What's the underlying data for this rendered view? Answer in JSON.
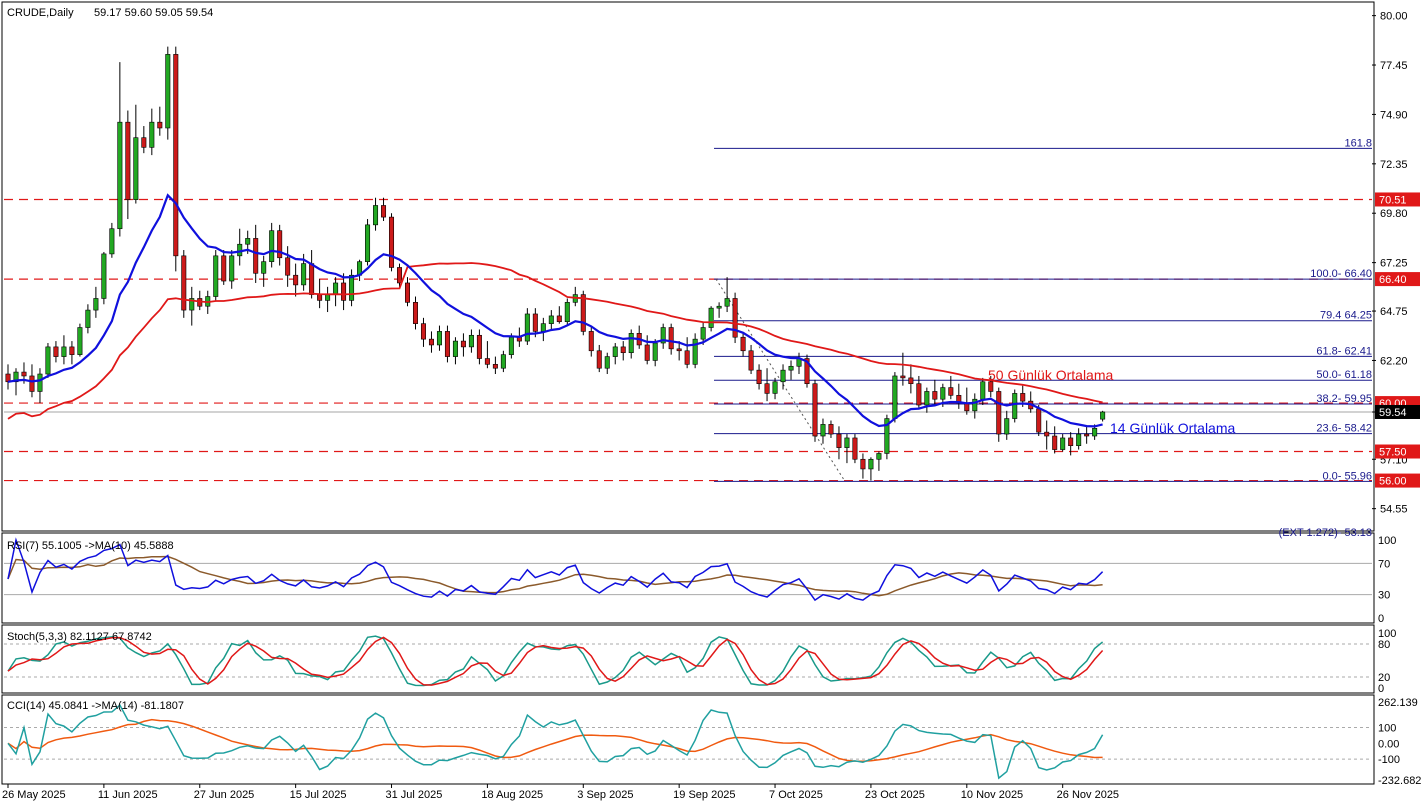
{
  "header": {
    "symbol": "CRUDE,Daily",
    "ohlc": "59.17 59.60 59.05 59.54"
  },
  "colors": {
    "up": "#22a822",
    "down": "#cc1a1a",
    "ma14": "#1010dd",
    "ma50": "#e01818",
    "level": "#e01818",
    "fib": "#1a1a8c",
    "rsi": "#1010dd",
    "rsi_ma": "#8b5a2b",
    "stoch_k": "#1a9a8a",
    "stoch_d": "#e01818",
    "cci": "#20a0a0",
    "cci_ma": "#f05a10"
  },
  "annotations": {
    "ma50_label": "50 Günlük Ortalama",
    "ma14_label": "14 Günlük Ortalama"
  },
  "levels": [
    {
      "value": 70.51,
      "label": "70.51"
    },
    {
      "value": 66.4,
      "label": "66.40"
    },
    {
      "value": 60.0,
      "label": "60.00"
    },
    {
      "value": 57.5,
      "label": "57.50"
    },
    {
      "value": 56.0,
      "label": "56.00"
    }
  ],
  "current_price": {
    "value": 59.54,
    "label": "59.54"
  },
  "fibonacci": [
    {
      "value": 73.15,
      "label": "161.8"
    },
    {
      "value": 66.4,
      "label": "100.0- 66.40"
    },
    {
      "value": 64.25,
      "label": "79.4 64.25"
    },
    {
      "value": 62.41,
      "label": "61.8- 62.41"
    },
    {
      "value": 61.18,
      "label": "50.0- 61.18"
    },
    {
      "value": 59.95,
      "label": "38.2- 59.95"
    },
    {
      "value": 58.42,
      "label": "23.6- 58.42"
    },
    {
      "value": 55.96,
      "label": "0.0- 55.96"
    }
  ],
  "fib_ext_label": "(EXT 1.272)- 53.13",
  "indicators": {
    "rsi": {
      "label": "RSI(7) 55.1005   ->MA(10) 45.5888",
      "ticks": [
        "100",
        "70",
        "30",
        "0"
      ]
    },
    "stoch": {
      "label": "Stoch(5,3,3) 82.1127 67.8742",
      "ticks": [
        "100",
        "80",
        "20",
        "0"
      ]
    },
    "cci": {
      "label": "CCI(14) 45.0841   ->MA(14) -81.1807",
      "ticks": [
        "262.139",
        "100",
        "0.00",
        "-100",
        "-232.682"
      ]
    }
  },
  "chart_data": {
    "type": "candlestick",
    "y_ticks": [
      "80.00",
      "77.45",
      "74.90",
      "72.35",
      "69.80",
      "67.25",
      "64.75",
      "62.20",
      "59.54",
      "57.10",
      "54.55"
    ],
    "ylim": [
      53.5,
      80.6
    ],
    "x_labels": [
      "26 May 2025",
      "11 Jun 2025",
      "27 Jun 2025",
      "15 Jul 2025",
      "31 Jul 2025",
      "18 Aug 2025",
      "3 Sep 2025",
      "19 Sep 2025",
      "7 Oct 2025",
      "23 Oct 2025",
      "10 Nov 2025",
      "26 Nov 2025"
    ],
    "x_label_bars": [
      0,
      12,
      24,
      36,
      48,
      60,
      72,
      84,
      96,
      108,
      120,
      132
    ],
    "bars": [
      [
        61.5,
        62.0,
        60.7,
        61.1
      ],
      [
        61.1,
        61.8,
        60.4,
        61.6
      ],
      [
        61.6,
        62.1,
        61.0,
        61.4
      ],
      [
        61.4,
        62.0,
        60.3,
        60.6
      ],
      [
        60.6,
        61.8,
        60.0,
        61.5
      ],
      [
        61.5,
        63.1,
        61.3,
        62.9
      ],
      [
        62.9,
        63.2,
        62.1,
        62.4
      ],
      [
        62.4,
        63.5,
        62.0,
        62.9
      ],
      [
        62.9,
        63.2,
        62.0,
        62.5
      ],
      [
        62.5,
        64.1,
        62.4,
        63.9
      ],
      [
        63.9,
        65.1,
        63.6,
        64.8
      ],
      [
        64.8,
        66.0,
        64.4,
        65.4
      ],
      [
        65.4,
        67.8,
        65.1,
        67.7
      ],
      [
        67.7,
        69.3,
        67.5,
        69.0
      ],
      [
        69.0,
        77.6,
        68.6,
        74.5
      ],
      [
        74.5,
        75.1,
        69.5,
        70.5
      ],
      [
        70.5,
        75.4,
        70.3,
        73.7
      ],
      [
        73.7,
        74.3,
        72.9,
        73.2
      ],
      [
        73.2,
        75.2,
        72.8,
        74.5
      ],
      [
        74.5,
        75.3,
        73.8,
        74.2
      ],
      [
        74.2,
        78.4,
        73.6,
        78.0
      ],
      [
        78.0,
        78.4,
        66.8,
        67.6
      ],
      [
        67.6,
        67.9,
        64.4,
        64.8
      ],
      [
        64.8,
        66.0,
        64.0,
        65.4
      ],
      [
        65.4,
        65.8,
        64.8,
        65.0
      ],
      [
        65.0,
        65.8,
        64.6,
        65.5
      ],
      [
        65.5,
        67.9,
        65.3,
        67.6
      ],
      [
        67.6,
        67.9,
        66.1,
        66.3
      ],
      [
        66.3,
        67.9,
        65.9,
        67.6
      ],
      [
        67.6,
        69.0,
        67.1,
        68.2
      ],
      [
        68.2,
        68.9,
        67.7,
        68.5
      ],
      [
        68.5,
        69.2,
        66.2,
        66.7
      ],
      [
        66.7,
        67.6,
        66.0,
        67.3
      ],
      [
        67.3,
        69.3,
        67.0,
        68.9
      ],
      [
        68.9,
        69.2,
        67.1,
        67.5
      ],
      [
        67.5,
        68.1,
        66.0,
        66.6
      ],
      [
        66.6,
        67.2,
        65.5,
        66.1
      ],
      [
        66.1,
        67.7,
        65.8,
        67.2
      ],
      [
        67.2,
        67.9,
        65.4,
        65.6
      ],
      [
        65.6,
        66.4,
        64.9,
        65.3
      ],
      [
        65.3,
        66.0,
        64.7,
        65.6
      ],
      [
        65.6,
        66.5,
        65.0,
        66.2
      ],
      [
        66.2,
        66.7,
        64.8,
        65.3
      ],
      [
        65.3,
        66.9,
        65.0,
        66.6
      ],
      [
        66.6,
        67.4,
        66.3,
        67.3
      ],
      [
        67.3,
        69.5,
        67.1,
        69.2
      ],
      [
        69.2,
        70.6,
        68.9,
        70.2
      ],
      [
        70.2,
        70.6,
        69.4,
        69.6
      ],
      [
        69.6,
        69.8,
        66.8,
        67.0
      ],
      [
        67.0,
        67.2,
        65.9,
        66.2
      ],
      [
        66.2,
        66.5,
        65.0,
        65.2
      ],
      [
        65.2,
        65.5,
        63.8,
        64.1
      ],
      [
        64.1,
        64.4,
        62.9,
        63.3
      ],
      [
        63.3,
        63.7,
        62.6,
        63.0
      ],
      [
        63.0,
        64.0,
        62.7,
        63.7
      ],
      [
        63.7,
        64.0,
        62.1,
        62.4
      ],
      [
        62.4,
        63.4,
        62.0,
        63.2
      ],
      [
        63.2,
        63.6,
        62.4,
        62.9
      ],
      [
        62.9,
        63.8,
        62.6,
        63.5
      ],
      [
        63.5,
        63.8,
        62.0,
        62.3
      ],
      [
        62.3,
        63.2,
        61.8,
        62.0
      ],
      [
        62.0,
        62.4,
        61.5,
        61.8
      ],
      [
        61.8,
        62.7,
        61.6,
        62.5
      ],
      [
        62.5,
        63.6,
        62.3,
        63.4
      ],
      [
        63.4,
        63.9,
        62.9,
        63.2
      ],
      [
        63.2,
        64.9,
        63.0,
        64.6
      ],
      [
        64.6,
        64.9,
        63.4,
        63.7
      ],
      [
        63.7,
        64.4,
        63.2,
        64.1
      ],
      [
        64.1,
        64.8,
        63.8,
        64.5
      ],
      [
        64.5,
        65.0,
        64.1,
        64.2
      ],
      [
        64.2,
        65.4,
        64.0,
        65.2
      ],
      [
        65.2,
        66.0,
        65.0,
        65.6
      ],
      [
        65.6,
        65.8,
        63.5,
        63.7
      ],
      [
        63.7,
        64.0,
        62.4,
        62.7
      ],
      [
        62.7,
        63.0,
        61.6,
        61.8
      ],
      [
        61.8,
        62.6,
        61.5,
        62.4
      ],
      [
        62.4,
        63.1,
        62.0,
        62.9
      ],
      [
        62.9,
        63.2,
        62.2,
        62.6
      ],
      [
        62.6,
        63.8,
        62.3,
        63.6
      ],
      [
        63.6,
        64.0,
        62.8,
        63.0
      ],
      [
        63.0,
        63.5,
        62.0,
        62.2
      ],
      [
        62.2,
        63.3,
        61.9,
        63.1
      ],
      [
        63.1,
        64.1,
        62.8,
        63.9
      ],
      [
        63.9,
        64.1,
        62.5,
        62.8
      ],
      [
        62.8,
        63.2,
        62.2,
        62.7
      ],
      [
        62.7,
        63.4,
        61.8,
        62.0
      ],
      [
        62.0,
        63.6,
        61.8,
        63.3
      ],
      [
        63.3,
        64.2,
        63.0,
        63.9
      ],
      [
        63.9,
        65.0,
        63.7,
        64.9
      ],
      [
        64.9,
        65.2,
        64.4,
        65.0
      ],
      [
        65.0,
        66.5,
        64.7,
        65.4
      ],
      [
        65.4,
        65.7,
        63.1,
        63.4
      ],
      [
        63.4,
        63.6,
        62.4,
        62.7
      ],
      [
        62.7,
        63.0,
        61.5,
        61.7
      ],
      [
        61.7,
        62.0,
        60.7,
        61.0
      ],
      [
        61.0,
        61.8,
        60.1,
        60.5
      ],
      [
        60.5,
        61.3,
        60.2,
        61.1
      ],
      [
        61.1,
        62.0,
        60.7,
        61.7
      ],
      [
        61.7,
        62.2,
        61.2,
        61.9
      ],
      [
        61.9,
        62.6,
        61.5,
        62.3
      ],
      [
        62.3,
        62.5,
        60.8,
        61.0
      ],
      [
        61.0,
        61.2,
        58.0,
        58.3
      ],
      [
        58.3,
        59.2,
        57.9,
        58.9
      ],
      [
        58.9,
        59.1,
        58.2,
        58.4
      ],
      [
        58.4,
        58.8,
        57.1,
        57.7
      ],
      [
        57.7,
        58.4,
        56.9,
        58.2
      ],
      [
        58.2,
        58.4,
        56.9,
        57.1
      ],
      [
        57.1,
        57.4,
        56.1,
        56.6
      ],
      [
        56.6,
        57.2,
        56.0,
        57.1
      ],
      [
        57.1,
        57.5,
        56.5,
        57.4
      ],
      [
        57.4,
        59.4,
        57.1,
        59.2
      ],
      [
        59.2,
        61.6,
        59.0,
        61.4
      ],
      [
        61.4,
        62.6,
        60.9,
        61.3
      ],
      [
        61.3,
        62.0,
        60.5,
        61.0
      ],
      [
        61.0,
        61.4,
        59.7,
        59.9
      ],
      [
        59.9,
        60.8,
        59.5,
        60.6
      ],
      [
        60.6,
        61.2,
        59.9,
        60.2
      ],
      [
        60.2,
        61.0,
        59.8,
        60.8
      ],
      [
        60.8,
        61.4,
        60.2,
        60.4
      ],
      [
        60.4,
        61.0,
        59.7,
        60.0
      ],
      [
        60.0,
        60.8,
        59.4,
        59.6
      ],
      [
        59.6,
        60.5,
        59.2,
        60.2
      ],
      [
        60.2,
        61.3,
        59.9,
        61.1
      ],
      [
        61.1,
        61.4,
        60.3,
        60.6
      ],
      [
        60.6,
        60.8,
        58.0,
        58.4
      ],
      [
        58.4,
        59.6,
        58.1,
        59.2
      ],
      [
        59.2,
        60.7,
        59.0,
        60.5
      ],
      [
        60.5,
        60.9,
        59.8,
        60.1
      ],
      [
        60.1,
        60.6,
        59.5,
        59.7
      ],
      [
        59.7,
        59.9,
        58.3,
        58.5
      ],
      [
        58.5,
        59.1,
        57.6,
        58.3
      ],
      [
        58.3,
        58.8,
        57.4,
        57.6
      ],
      [
        57.6,
        58.4,
        57.5,
        58.2
      ],
      [
        58.2,
        58.5,
        57.3,
        57.8
      ],
      [
        57.8,
        58.7,
        57.6,
        58.4
      ],
      [
        58.4,
        58.8,
        57.9,
        58.3
      ],
      [
        58.3,
        58.9,
        58.1,
        58.7
      ],
      [
        59.17,
        59.6,
        59.05,
        59.54
      ]
    ],
    "rsi_ylim": [
      0,
      100
    ],
    "stoch_ylim": [
      0,
      100
    ],
    "cci_ylim": [
      -232.682,
      262.139
    ]
  }
}
